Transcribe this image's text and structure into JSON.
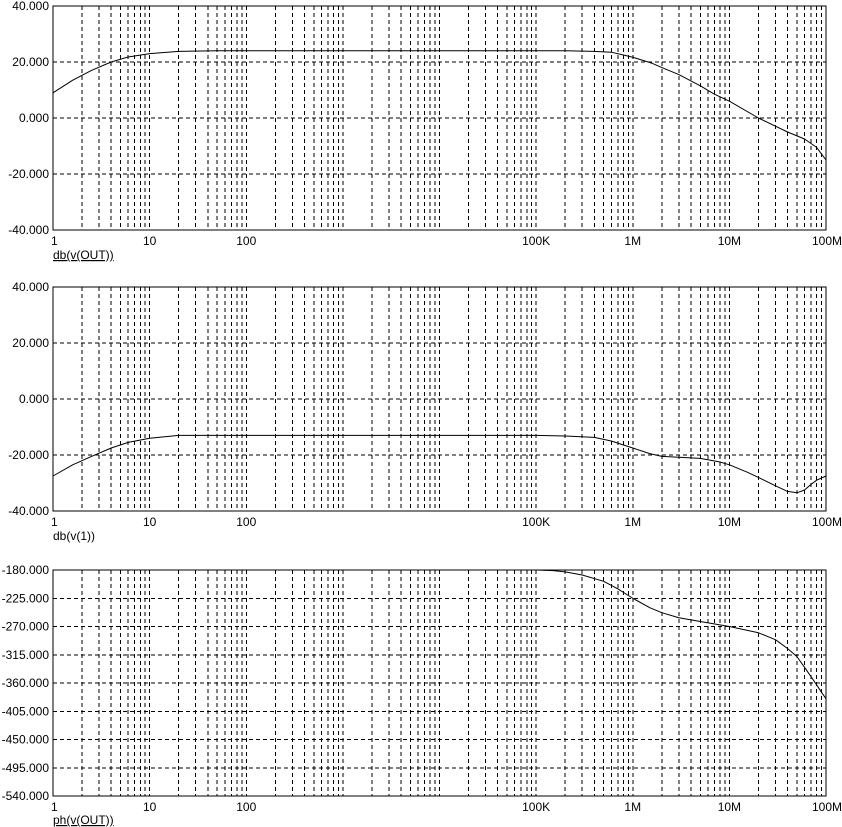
{
  "colors": {
    "background": "#ffffff",
    "frame": "#000000",
    "grid": "#000000",
    "trace": "#000000"
  },
  "chart_data": [
    {
      "type": "line",
      "title": "db(v(OUT))",
      "title_underlined": true,
      "x_scale": "log",
      "xlim": [
        1,
        100000000
      ],
      "ylim": [
        -40,
        40
      ],
      "grid": true,
      "x_tick_labels": [
        {
          "x": 1,
          "label": "1"
        },
        {
          "x": 10,
          "label": "10"
        },
        {
          "x": 100,
          "label": "100"
        },
        {
          "x": 100000,
          "label": "100K"
        },
        {
          "x": 1000000,
          "label": "1M"
        },
        {
          "x": 10000000,
          "label": "10M"
        },
        {
          "x": 100000000,
          "label": "100M"
        }
      ],
      "y_ticks": [
        40,
        20,
        0,
        -20,
        -40
      ],
      "y_tick_labels": [
        "40.000",
        "20.000",
        "0.000",
        "-20.000",
        "-40.000"
      ],
      "series": [
        {
          "x": [
            1,
            1.6,
            2.5,
            4,
            6,
            10,
            20,
            50,
            100,
            300,
            1000,
            3000,
            10000,
            30000,
            60000,
            100000,
            200000,
            400000,
            600000,
            800000,
            1000000,
            1300000,
            1600000,
            2000000,
            3000000,
            5000000,
            7000000,
            10000000,
            20000000,
            40000000,
            60000000,
            80000000,
            100000000
          ],
          "y": [
            9,
            13.5,
            17,
            20,
            21.8,
            23,
            23.8,
            24,
            24,
            24,
            24,
            24,
            24,
            24,
            24,
            24,
            24,
            23.8,
            23.5,
            22.5,
            21.7,
            20.5,
            19.5,
            18,
            15.5,
            11.5,
            8.5,
            6,
            0,
            -5,
            -7.5,
            -10.5,
            -15
          ]
        }
      ]
    },
    {
      "type": "line",
      "title": "db(v(1))",
      "title_underlined": false,
      "x_scale": "log",
      "xlim": [
        1,
        100000000
      ],
      "ylim": [
        -40,
        40
      ],
      "grid": true,
      "x_tick_labels": [
        {
          "x": 1,
          "label": "1"
        },
        {
          "x": 10,
          "label": "10"
        },
        {
          "x": 100,
          "label": "100"
        },
        {
          "x": 100000,
          "label": "100K"
        },
        {
          "x": 1000000,
          "label": "1M"
        },
        {
          "x": 10000000,
          "label": "10M"
        },
        {
          "x": 100000000,
          "label": "100M"
        }
      ],
      "y_ticks": [
        40,
        20,
        0,
        -20,
        -40
      ],
      "y_tick_labels": [
        "40.000",
        "20.000",
        "0.000",
        "-20.000",
        "-40.000"
      ],
      "series": [
        {
          "x": [
            1,
            1.6,
            2.5,
            4,
            6,
            10,
            20,
            50,
            100,
            1000,
            10000,
            100000,
            200000,
            400000,
            600000,
            1000000,
            1500000,
            2000000,
            3000000,
            5000000,
            8000000,
            10000000,
            15000000,
            20000000,
            30000000,
            40000000,
            50000000,
            60000000,
            70000000,
            80000000,
            100000000
          ],
          "y": [
            -27.5,
            -23.5,
            -20.5,
            -17.5,
            -15.5,
            -14,
            -13,
            -13,
            -13,
            -13,
            -13,
            -13,
            -13.2,
            -13.7,
            -15,
            -17.5,
            -19.5,
            -20.5,
            -20.8,
            -21.2,
            -22.5,
            -23.5,
            -26,
            -28,
            -31,
            -33,
            -33.5,
            -32.5,
            -30.5,
            -29,
            -27.5
          ]
        }
      ]
    },
    {
      "type": "line",
      "title": "ph(v(OUT))",
      "title_underlined": true,
      "x_scale": "log",
      "xlim": [
        1,
        100000000
      ],
      "ylim": [
        -540,
        -180
      ],
      "grid": true,
      "x_tick_labels": [
        {
          "x": 1,
          "label": "1"
        },
        {
          "x": 10,
          "label": "10"
        },
        {
          "x": 100,
          "label": "100"
        },
        {
          "x": 100000,
          "label": "100K"
        },
        {
          "x": 1000000,
          "label": "1M"
        },
        {
          "x": 10000000,
          "label": "10M"
        },
        {
          "x": 100000000,
          "label": "100M"
        }
      ],
      "y_ticks": [
        -180,
        -225,
        -270,
        -315,
        -360,
        -405,
        -450,
        -495,
        -540
      ],
      "y_tick_labels": [
        "-180.000",
        "-225.000",
        "-270.000",
        "-315.000",
        "-360.000",
        "-405.000",
        "-450.000",
        "-495.000",
        "-540.000"
      ],
      "series": [
        {
          "x": [
            100000,
            150000,
            200000,
            300000,
            500000,
            700000,
            1000000,
            1500000,
            2000000,
            3000000,
            5000000,
            10000000,
            20000000,
            30000000,
            40000000,
            50000000,
            60000000,
            70000000,
            80000000,
            90000000,
            100000000
          ],
          "y": [
            -180,
            -181,
            -183,
            -188,
            -198,
            -210,
            -225,
            -240,
            -248,
            -256,
            -262,
            -270,
            -280,
            -291,
            -305,
            -318,
            -335,
            -350,
            -363,
            -375,
            -385
          ]
        }
      ]
    }
  ]
}
